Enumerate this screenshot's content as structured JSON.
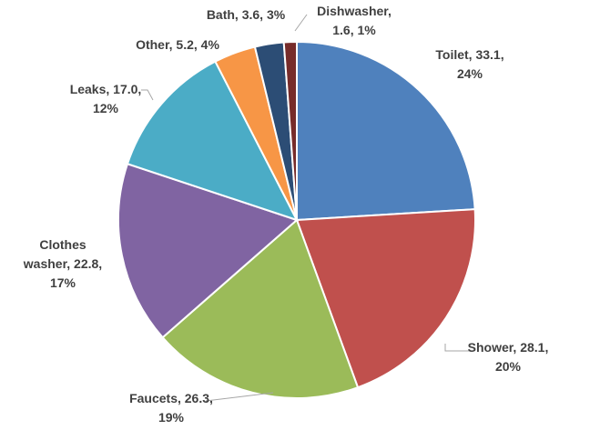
{
  "chart_data": {
    "type": "pie",
    "title": "",
    "start_angle_deg": 0,
    "direction": "clockwise",
    "legend": "none",
    "slices": [
      {
        "name": "Toilet",
        "value": 33.1,
        "percent": "24%",
        "color": "#4f81bd",
        "label_lines": [
          "Toilet, 33.1,",
          "24%"
        ]
      },
      {
        "name": "Shower",
        "value": 28.1,
        "percent": "20%",
        "color": "#c0504d",
        "label_lines": [
          "Shower, 28.1,",
          "20%"
        ]
      },
      {
        "name": "Faucets",
        "value": 26.3,
        "percent": "19%",
        "color": "#9bbb59",
        "label_lines": [
          "Faucets, 26.3,",
          "19%"
        ]
      },
      {
        "name": "Clothes washer",
        "value": 22.8,
        "percent": "17%",
        "color": "#8064a2",
        "label_lines": [
          "Clothes",
          "washer, 22.8,",
          "17%"
        ]
      },
      {
        "name": "Leaks",
        "value": 17.0,
        "percent": "12%",
        "color": "#4bacc6",
        "label_lines": [
          "Leaks, 17.0,",
          "12%"
        ]
      },
      {
        "name": "Other",
        "value": 5.2,
        "percent": "4%",
        "color": "#f79646",
        "label_lines": [
          "Other, 5.2, 4%"
        ]
      },
      {
        "name": "Bath",
        "value": 3.6,
        "percent": "3%",
        "color": "#2c4d75",
        "label_lines": [
          "Bath, 3.6, 3%"
        ]
      },
      {
        "name": "Dishwasher",
        "value": 1.6,
        "percent": "1%",
        "color": "#772c2a",
        "label_lines": [
          "Dishwasher,",
          "1.6, 1%"
        ]
      }
    ]
  }
}
